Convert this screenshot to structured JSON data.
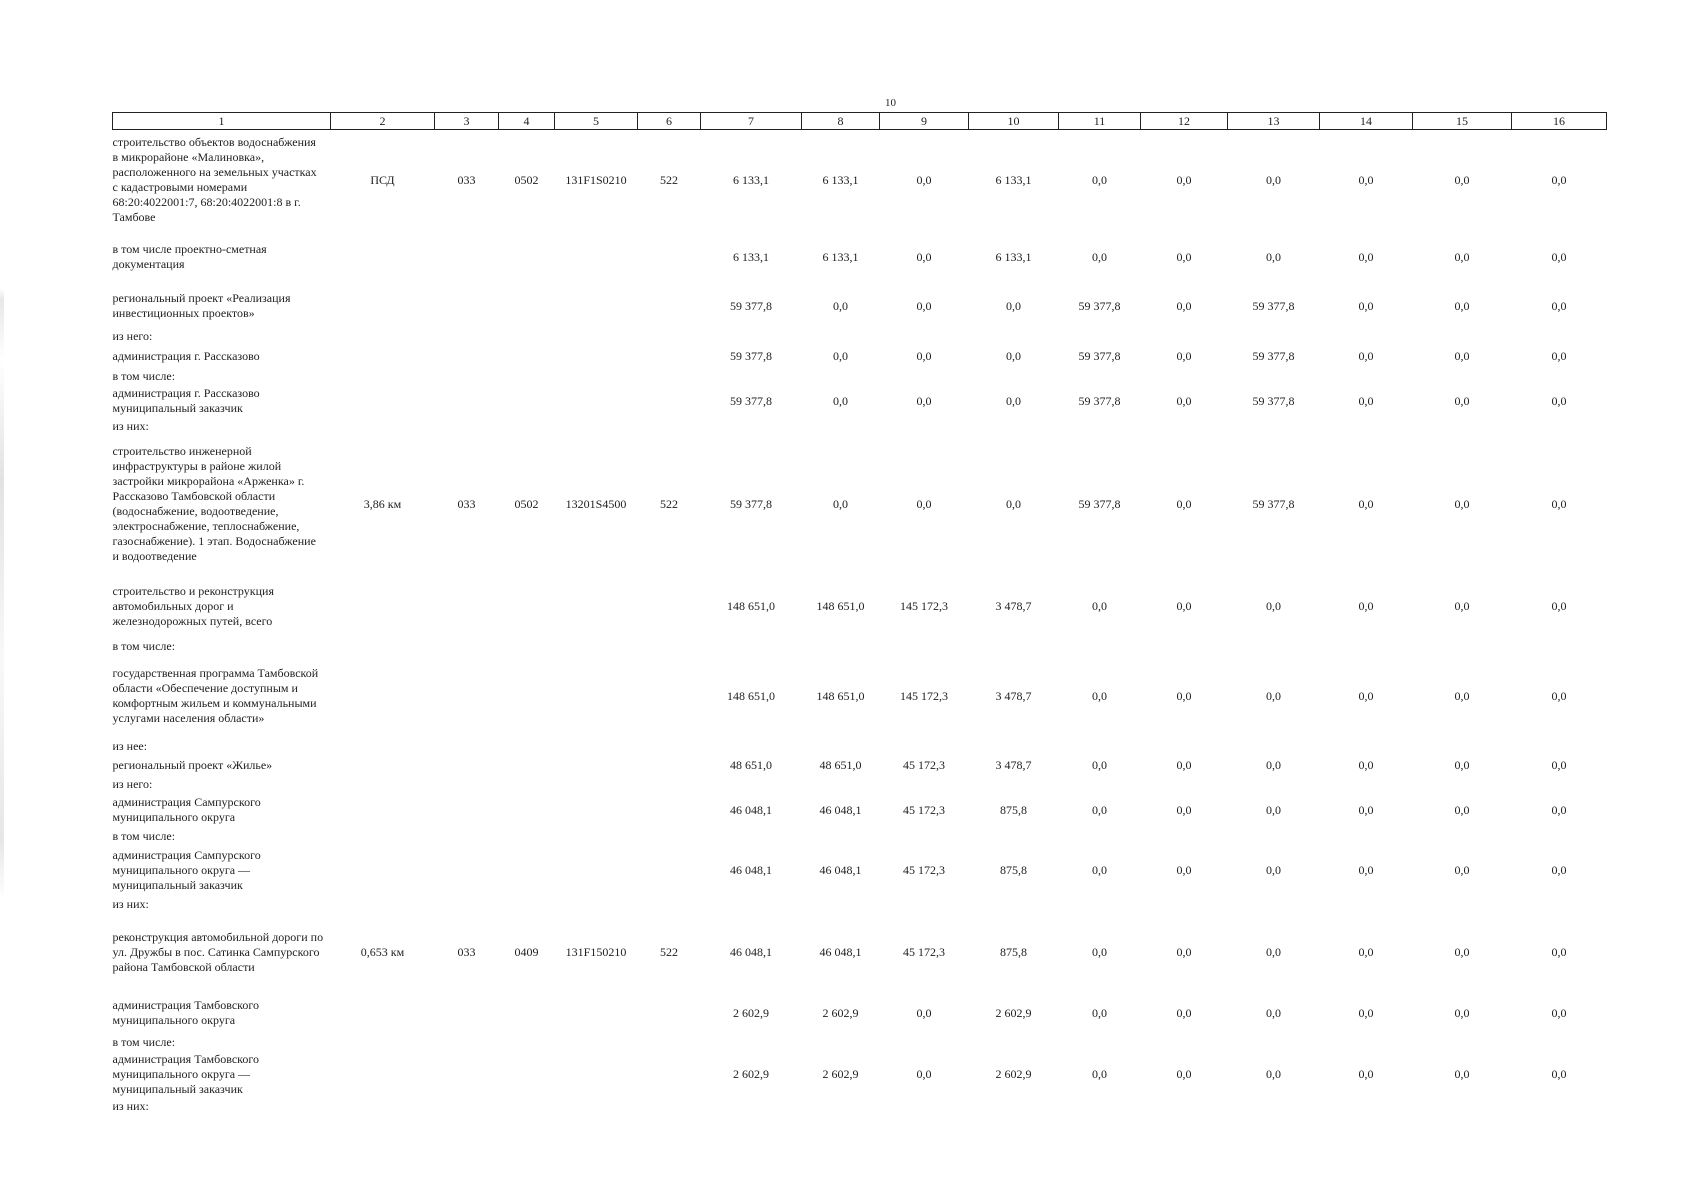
{
  "page_number": "10",
  "columns": [
    "1",
    "2",
    "3",
    "4",
    "5",
    "6",
    "7",
    "8",
    "9",
    "10",
    "11",
    "12",
    "13",
    "14",
    "15",
    "16"
  ],
  "rows": [
    {
      "kind": "data",
      "label": "строительство объектов водоснабжения в микрорайоне «Малиновка», расположенного на земельных участках с кадастровыми номерами 68:20:4022001:7, 68:20:4022001:8 в г. Тамбове",
      "c2": "ПСД",
      "c3": "033",
      "c4": "0502",
      "c5": "131F1S0210",
      "c6": "522",
      "v": [
        "6 133,1",
        "6 133,1",
        "0,0",
        "6 133,1",
        "0,0",
        "0,0",
        "0,0",
        "0,0",
        "0,0",
        "0,0"
      ]
    },
    {
      "kind": "data",
      "label": "в том числе проектно-сметная документация",
      "c2": "",
      "c3": "",
      "c4": "",
      "c5": "",
      "c6": "",
      "v": [
        "6 133,1",
        "6 133,1",
        "0,0",
        "6 133,1",
        "0,0",
        "0,0",
        "0,0",
        "0,0",
        "0,0",
        "0,0"
      ]
    },
    {
      "kind": "data",
      "label": "региональный проект «Реализация инвестиционных проектов»",
      "c2": "",
      "c3": "",
      "c4": "",
      "c5": "",
      "c6": "",
      "v": [
        "59 377,8",
        "0,0",
        "0,0",
        "0,0",
        "59 377,8",
        "0,0",
        "59 377,8",
        "0,0",
        "0,0",
        "0,0"
      ]
    },
    {
      "kind": "sub",
      "label": "из него:"
    },
    {
      "kind": "data",
      "label": "администрация г. Рассказово",
      "c2": "",
      "c3": "",
      "c4": "",
      "c5": "",
      "c6": "",
      "v": [
        "59 377,8",
        "0,0",
        "0,0",
        "0,0",
        "59 377,8",
        "0,0",
        "59 377,8",
        "0,0",
        "0,0",
        "0,0"
      ]
    },
    {
      "kind": "sub",
      "label": "в том числе:"
    },
    {
      "kind": "data",
      "label": "администрация г. Рассказово муниципальный заказчик",
      "c2": "",
      "c3": "",
      "c4": "",
      "c5": "",
      "c6": "",
      "v": [
        "59 377,8",
        "0,0",
        "0,0",
        "0,0",
        "59 377,8",
        "0,0",
        "59 377,8",
        "0,0",
        "0,0",
        "0,0"
      ]
    },
    {
      "kind": "sub",
      "label": "из них:"
    },
    {
      "kind": "data",
      "label": "строительство инженерной инфраструктуры в районе жилой застройки микрорайона «Арженка» г. Рассказово Тамбовской области (водоснабжение, водоотведение, электроснабжение, теплоснабжение, газоснабжение). 1 этап. Водоснабжение и водоотведение",
      "c2": "3,86 км",
      "c3": "033",
      "c4": "0502",
      "c5": "13201S4500",
      "c6": "522",
      "v": [
        "59 377,8",
        "0,0",
        "0,0",
        "0,0",
        "59 377,8",
        "0,0",
        "59 377,8",
        "0,0",
        "0,0",
        "0,0"
      ]
    },
    {
      "kind": "data",
      "label": "строительство и реконструкция автомобильных дорог и железнодорожных путей, всего",
      "c2": "",
      "c3": "",
      "c4": "",
      "c5": "",
      "c6": "",
      "v": [
        "148 651,0",
        "148 651,0",
        "145 172,3",
        "3 478,7",
        "0,0",
        "0,0",
        "0,0",
        "0,0",
        "0,0",
        "0,0"
      ]
    },
    {
      "kind": "sub",
      "label": "в том числе:"
    },
    {
      "kind": "data",
      "label": "государственная программа Тамбовской области «Обеспечение доступным и комфортным жильем и коммунальными услугами населения области»",
      "c2": "",
      "c3": "",
      "c4": "",
      "c5": "",
      "c6": "",
      "v": [
        "148 651,0",
        "148 651,0",
        "145 172,3",
        "3 478,7",
        "0,0",
        "0,0",
        "0,0",
        "0,0",
        "0,0",
        "0,0"
      ]
    },
    {
      "kind": "sub",
      "label": "из нее:"
    },
    {
      "kind": "data",
      "label": "региональный проект «Жилье»",
      "c2": "",
      "c3": "",
      "c4": "",
      "c5": "",
      "c6": "",
      "v": [
        "48 651,0",
        "48 651,0",
        "45 172,3",
        "3 478,7",
        "0,0",
        "0,0",
        "0,0",
        "0,0",
        "0,0",
        "0,0"
      ]
    },
    {
      "kind": "sub",
      "label": "из него:"
    },
    {
      "kind": "data",
      "label": "администрация Сампурского муниципального округа",
      "c2": "",
      "c3": "",
      "c4": "",
      "c5": "",
      "c6": "",
      "v": [
        "46 048,1",
        "46 048,1",
        "45 172,3",
        "875,8",
        "0,0",
        "0,0",
        "0,0",
        "0,0",
        "0,0",
        "0,0"
      ]
    },
    {
      "kind": "sub",
      "label": "в том числе:"
    },
    {
      "kind": "data",
      "label": "администрация Сампурского муниципального округа — муниципальный заказчик",
      "c2": "",
      "c3": "",
      "c4": "",
      "c5": "",
      "c6": "",
      "v": [
        "46 048,1",
        "46 048,1",
        "45 172,3",
        "875,8",
        "0,0",
        "0,0",
        "0,0",
        "0,0",
        "0,0",
        "0,0"
      ]
    },
    {
      "kind": "sub",
      "label": "из них:"
    },
    {
      "kind": "data",
      "label": "реконструкция автомобильной дороги по ул. Дружбы в пос. Сатинка Сампурского района Тамбовской области",
      "c2": "0,653 км",
      "c3": "033",
      "c4": "0409",
      "c5": "131F150210",
      "c6": "522",
      "v": [
        "46 048,1",
        "46 048,1",
        "45 172,3",
        "875,8",
        "0,0",
        "0,0",
        "0,0",
        "0,0",
        "0,0",
        "0,0"
      ]
    },
    {
      "kind": "data",
      "label": "администрация Тамбовского муниципального округа",
      "c2": "",
      "c3": "",
      "c4": "",
      "c5": "",
      "c6": "",
      "v": [
        "2 602,9",
        "2 602,9",
        "0,0",
        "2 602,9",
        "0,0",
        "0,0",
        "0,0",
        "0,0",
        "0,0",
        "0,0"
      ]
    },
    {
      "kind": "sub",
      "label": "в том числе:"
    },
    {
      "kind": "data",
      "label": "администрация Тамбовского муниципального округа — муниципальный заказчик",
      "c2": "",
      "c3": "",
      "c4": "",
      "c5": "",
      "c6": "",
      "v": [
        "2 602,9",
        "2 602,9",
        "0,0",
        "2 602,9",
        "0,0",
        "0,0",
        "0,0",
        "0,0",
        "0,0",
        "0,0"
      ]
    },
    {
      "kind": "sub",
      "label": "из них:"
    }
  ]
}
